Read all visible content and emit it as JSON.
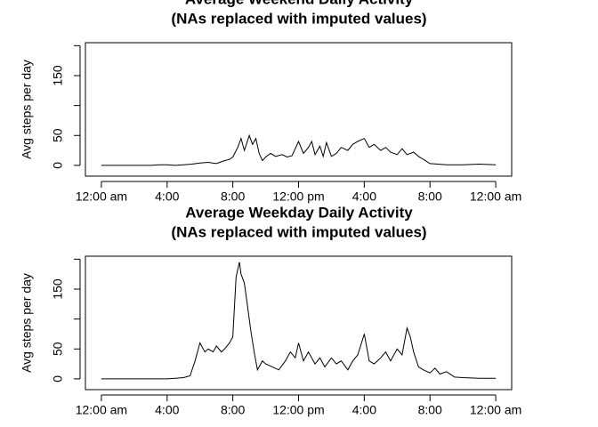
{
  "chart_data": [
    {
      "type": "line",
      "title": "Average Weekend Daily Activity",
      "subtitle": "(NAs replaced with imputed values)",
      "ylabel": "Avg steps per day",
      "x": [
        0,
        0.5,
        1,
        1.5,
        2,
        2.5,
        3,
        3.5,
        4,
        4.5,
        5,
        5.5,
        6,
        6.5,
        7,
        7.5,
        7.8,
        8,
        8.3,
        8.5,
        8.7,
        9,
        9.2,
        9.4,
        9.6,
        9.8,
        10,
        10.3,
        10.6,
        11,
        11.3,
        11.6,
        12,
        12.3,
        12.6,
        12.8,
        13,
        13.3,
        13.5,
        13.7,
        14,
        14.3,
        14.6,
        15,
        15.3,
        15.6,
        16,
        16.3,
        16.6,
        17,
        17.3,
        17.6,
        18,
        18.3,
        18.6,
        19,
        19.3,
        19.6,
        20,
        20.5,
        21,
        22,
        23,
        24
      ],
      "series": [
        {
          "name": "weekend",
          "color": "#000000",
          "values": [
            0,
            0,
            0,
            0,
            0,
            0,
            0,
            1,
            1,
            0,
            1,
            2,
            4,
            5,
            3,
            8,
            10,
            14,
            30,
            45,
            25,
            50,
            35,
            45,
            20,
            8,
            14,
            20,
            15,
            18,
            14,
            16,
            40,
            20,
            30,
            40,
            18,
            32,
            15,
            38,
            15,
            20,
            30,
            25,
            35,
            40,
            45,
            30,
            35,
            25,
            30,
            22,
            18,
            28,
            18,
            22,
            15,
            10,
            3,
            2,
            1,
            1,
            2,
            1
          ]
        }
      ],
      "xlim": [
        -0.97,
        24.97
      ],
      "ylim": [
        -18,
        205
      ],
      "xticks": [
        {
          "value": 0,
          "label": "12:00 am"
        },
        {
          "value": 4,
          "label": "4:00"
        },
        {
          "value": 8,
          "label": "8:00"
        },
        {
          "value": 12,
          "label": "12:00 pm"
        },
        {
          "value": 16,
          "label": "4:00"
        },
        {
          "value": 20,
          "label": "8:00"
        },
        {
          "value": 24,
          "label": "12:00 am"
        }
      ],
      "yticks": [
        0,
        50,
        150
      ],
      "ytick_marks": [
        0,
        50,
        100,
        150,
        200
      ]
    },
    {
      "type": "line",
      "title": "Average Weekday Daily Activity",
      "subtitle": "(NAs replaced with imputed values)",
      "ylabel": "Avg steps per day",
      "x": [
        0,
        0.5,
        1,
        1.5,
        2,
        2.5,
        3,
        3.5,
        4,
        4.5,
        5,
        5.4,
        5.7,
        6,
        6.3,
        6.5,
        6.8,
        7,
        7.3,
        7.5,
        7.8,
        8,
        8.2,
        8.4,
        8.5,
        8.7,
        8.9,
        9.1,
        9.3,
        9.5,
        9.8,
        10,
        10.4,
        10.8,
        11.2,
        11.5,
        11.8,
        12,
        12.3,
        12.6,
        13,
        13.3,
        13.6,
        14,
        14.3,
        14.6,
        15,
        15.3,
        15.6,
        16,
        16.3,
        16.6,
        17,
        17.3,
        17.6,
        18,
        18.3,
        18.6,
        18.8,
        19,
        19.3,
        19.6,
        20,
        20.3,
        20.6,
        21,
        21.5,
        22,
        23,
        24
      ],
      "series": [
        {
          "name": "weekday",
          "color": "#000000",
          "values": [
            0,
            0,
            0,
            0,
            0,
            0,
            0,
            0,
            0,
            1,
            2,
            5,
            30,
            60,
            45,
            50,
            45,
            55,
            45,
            50,
            60,
            70,
            170,
            195,
            175,
            160,
            120,
            80,
            45,
            15,
            30,
            25,
            20,
            15,
            30,
            45,
            35,
            60,
            30,
            45,
            25,
            35,
            20,
            35,
            25,
            30,
            15,
            30,
            40,
            75,
            30,
            25,
            35,
            45,
            30,
            50,
            40,
            85,
            70,
            45,
            20,
            15,
            10,
            18,
            8,
            12,
            3,
            2,
            1,
            1
          ]
        }
      ],
      "xlim": [
        -0.97,
        24.97
      ],
      "ylim": [
        -18,
        205
      ],
      "xticks": [
        {
          "value": 0,
          "label": "12:00 am"
        },
        {
          "value": 4,
          "label": "4:00"
        },
        {
          "value": 8,
          "label": "8:00"
        },
        {
          "value": 12,
          "label": "12:00 pm"
        },
        {
          "value": 16,
          "label": "4:00"
        },
        {
          "value": 20,
          "label": "8:00"
        },
        {
          "value": 24,
          "label": "12:00 am"
        }
      ],
      "yticks": [
        0,
        50,
        150
      ],
      "ytick_marks": [
        0,
        50,
        100,
        150,
        200
      ]
    }
  ]
}
